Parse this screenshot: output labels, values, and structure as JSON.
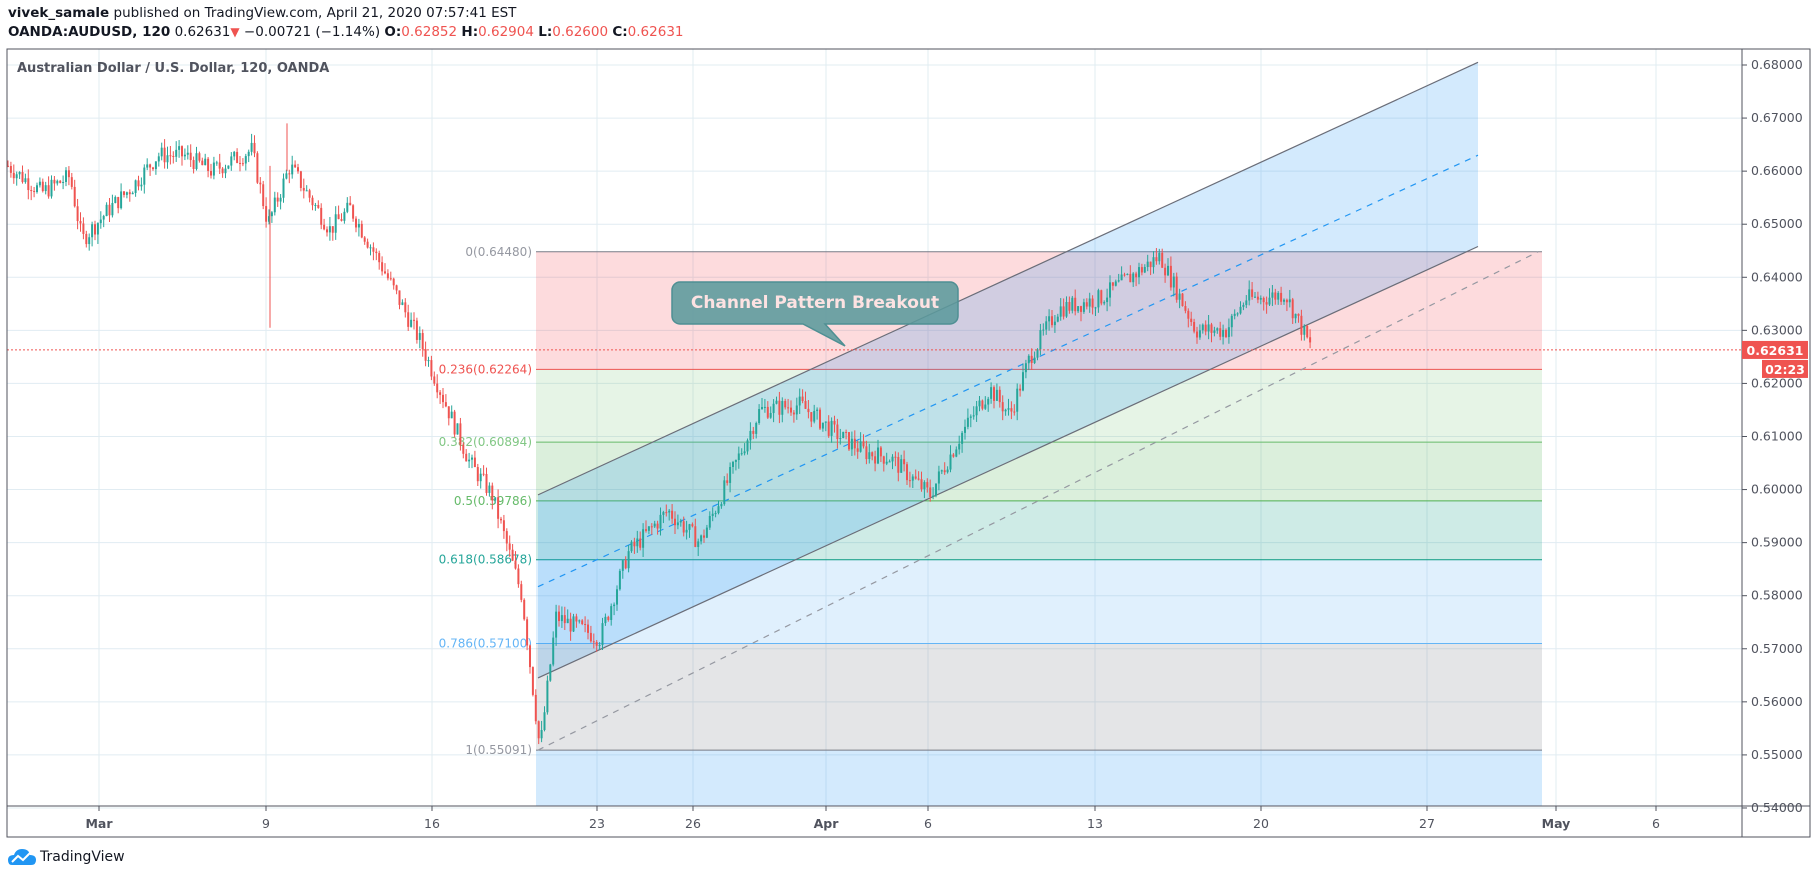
{
  "header": {
    "author": "vivek_samale",
    "published_text": " published on TradingView.com, April 21, 2020 07:57:41 EST",
    "symbol": "OANDA:AUDUSD, 120",
    "last": "0.62631",
    "direction_glyph": "▼",
    "change": "−0.00721 (−1.14%)",
    "open_label": "O:",
    "open": "0.62852",
    "high_label": "H:",
    "high": "0.62904",
    "low_label": "L:",
    "low": "0.62600",
    "close_label": "C:",
    "close": "0.62631"
  },
  "chart_title": "Australian Dollar / U.S. Dollar, 120, OANDA",
  "price_badge": {
    "value": "0.62631",
    "countdown": "02:23",
    "color": "#ef5350"
  },
  "annotation": {
    "text": "Channel Pattern Breakout"
  },
  "footer": {
    "brand": "TradingView"
  },
  "colors": {
    "up": "#26a69a",
    "down": "#ef5350",
    "grid": "#e1ecf2",
    "axis": "#50535e",
    "callout_bg": "#5b9a9c",
    "callout_text": "#fde2e2"
  },
  "chart_data": {
    "type": "candlestick",
    "title": "Australian Dollar / U.S. Dollar, 120, OANDA",
    "xlabel": "",
    "ylabel": "",
    "ylim": [
      0.54,
      0.68
    ],
    "grid": true,
    "y_ticks": [
      "0.68000",
      "0.67000",
      "0.66000",
      "0.65000",
      "0.64000",
      "0.63000",
      "0.62000",
      "0.61000",
      "0.60000",
      "0.59000",
      "0.58000",
      "0.57000",
      "0.56000",
      "0.55000",
      "0.54000"
    ],
    "x_ticks": [
      {
        "label": "Mar",
        "bold": true
      },
      {
        "label": "9"
      },
      {
        "label": "16"
      },
      {
        "label": "23"
      },
      {
        "label": "26"
      },
      {
        "label": "Apr",
        "bold": true
      },
      {
        "label": "6"
      },
      {
        "label": "13"
      },
      {
        "label": "20"
      },
      {
        "label": "27"
      },
      {
        "label": "May",
        "bold": true
      },
      {
        "label": "6"
      }
    ],
    "price_path_anchors": [
      {
        "date": "Feb 25",
        "close": 0.661
      },
      {
        "date": "Feb 26",
        "close": 0.656
      },
      {
        "date": "Feb 27",
        "close": 0.659
      },
      {
        "date": "Feb 28",
        "close": 0.647
      },
      {
        "date": "Mar 2",
        "close": 0.653
      },
      {
        "date": "Mar 3",
        "close": 0.657
      },
      {
        "date": "Mar 4",
        "close": 0.663
      },
      {
        "date": "Mar 5",
        "close": 0.663
      },
      {
        "date": "Mar 6",
        "close": 0.66
      },
      {
        "date": "Mar 8",
        "close": 0.664
      },
      {
        "date": "Mar 9",
        "close": 0.65
      },
      {
        "date": "Mar 10",
        "close": 0.661
      },
      {
        "date": "Mar 11",
        "close": 0.655
      },
      {
        "date": "Mar 12",
        "close": 0.649
      },
      {
        "date": "Mar 13",
        "close": 0.653
      },
      {
        "date": "Mar 15",
        "close": 0.642
      },
      {
        "date": "Mar 16",
        "close": 0.628
      },
      {
        "date": "Mar 17",
        "close": 0.616
      },
      {
        "date": "Mar 18",
        "close": 0.605
      },
      {
        "date": "Mar 19",
        "close": 0.599
      },
      {
        "date": "Mar 20",
        "close": 0.58
      },
      {
        "date": "Mar 20b",
        "close": 0.551
      },
      {
        "date": "Mar 21",
        "close": 0.576
      },
      {
        "date": "Mar 23",
        "close": 0.572
      },
      {
        "date": "Mar 24",
        "close": 0.588
      },
      {
        "date": "Mar 25",
        "close": 0.596
      },
      {
        "date": "Mar 26",
        "close": 0.59
      },
      {
        "date": "Mar 27",
        "close": 0.615
      },
      {
        "date": "Mar 30",
        "close": 0.616
      },
      {
        "date": "Apr 1",
        "close": 0.61
      },
      {
        "date": "Apr 2",
        "close": 0.607
      },
      {
        "date": "Apr 3",
        "close": 0.606
      },
      {
        "date": "Apr 6",
        "close": 0.599
      },
      {
        "date": "Apr 7",
        "close": 0.61
      },
      {
        "date": "Apr 8",
        "close": 0.619
      },
      {
        "date": "Apr 9",
        "close": 0.614
      },
      {
        "date": "Apr 10",
        "close": 0.625
      },
      {
        "date": "Apr 12",
        "close": 0.634
      },
      {
        "date": "Apr 13",
        "close": 0.636
      },
      {
        "date": "Apr 14",
        "close": 0.64
      },
      {
        "date": "Apr 15",
        "close": 0.644
      },
      {
        "date": "Apr 16",
        "close": 0.63
      },
      {
        "date": "Apr 17",
        "close": 0.63
      },
      {
        "date": "Apr 17b",
        "close": 0.636
      },
      {
        "date": "Apr 19",
        "close": 0.636
      },
      {
        "date": "Apr 20",
        "close": 0.637
      },
      {
        "date": "Apr 21",
        "close": 0.6263
      }
    ],
    "last_price": 0.62631,
    "fibonacci_retracement": {
      "levels": [
        {
          "ratio": "0",
          "price": 0.6448,
          "label": "0(0.64480)",
          "line": "#787b86",
          "fill": "rgba(242,54,69,0.18)",
          "text": "#9598a1"
        },
        {
          "ratio": "0.236",
          "price": 0.62264,
          "label": "0.236(0.62264)",
          "line": "#ef5350",
          "fill": "rgba(129,199,132,0.2)",
          "text": "#ef5350"
        },
        {
          "ratio": "0.382",
          "price": 0.60894,
          "label": "0.382(0.60894)",
          "line": "#66bb6a",
          "fill": "rgba(76,175,80,0.2)",
          "text": "#81c784"
        },
        {
          "ratio": "0.5",
          "price": 0.59786,
          "label": "0.5(0.59786)",
          "line": "#4caf50",
          "fill": "rgba(8,153,129,0.2)",
          "text": "#66bb6a"
        },
        {
          "ratio": "0.618",
          "price": 0.58678,
          "label": "0.618(0.58678)",
          "line": "#089981",
          "fill": "rgba(100,181,246,0.2)",
          "text": "#26a69a"
        },
        {
          "ratio": "0.786",
          "price": 0.571,
          "label": "0.786(0.57100)",
          "line": "#64b5f6",
          "fill": "rgba(120,123,134,0.2)",
          "text": "#64b5f6"
        },
        {
          "ratio": "1",
          "price": 0.55091,
          "label": "1(0.55091)",
          "line": "#787b86",
          "fill": "rgba(33,150,243,0.2)",
          "text": "#9598a1"
        }
      ],
      "start_date": "Mar 20",
      "end_date": "Apr 30"
    },
    "parallel_channel": {
      "start": {
        "date": "Mar 20",
        "upper": 0.599,
        "middle": 0.5817,
        "lower": 0.5645
      },
      "end": {
        "date": "Apr 29",
        "upper": 0.6805,
        "middle": 0.663,
        "lower": 0.6458
      },
      "fill": "rgba(33,150,243,0.2)"
    },
    "annotations": [
      {
        "type": "callout",
        "text": "Channel Pattern Breakout",
        "points_to_price": 0.6263
      }
    ]
  }
}
